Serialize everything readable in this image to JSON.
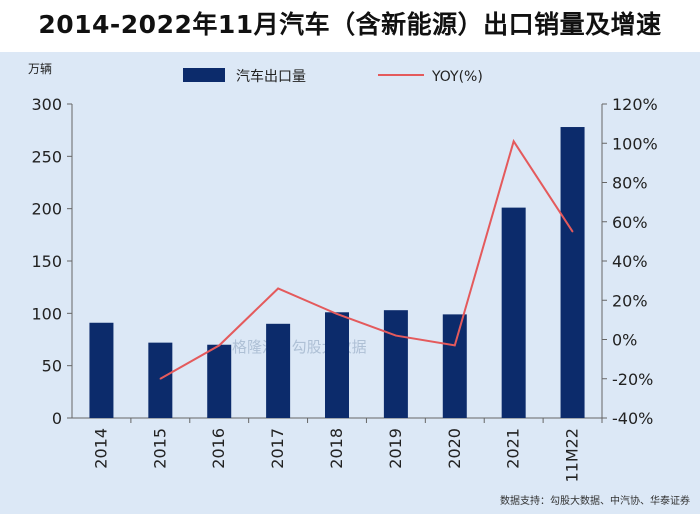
{
  "title": "2014-2022年11月汽车（含新能源）出口销量及增速",
  "chart_data": {
    "type": "bar",
    "categories": [
      "2014",
      "2015",
      "2016",
      "2017",
      "2018",
      "2019",
      "2020",
      "2021",
      "11M22"
    ],
    "series": [
      {
        "name": "汽车出口量",
        "type": "bar",
        "axis": "left",
        "values": [
          91,
          72,
          70,
          90,
          101,
          103,
          99,
          201,
          278
        ]
      },
      {
        "name": "YOY(%)",
        "type": "line",
        "axis": "right",
        "values": [
          null,
          -20,
          -3,
          26,
          13,
          2,
          -3,
          101,
          55
        ]
      }
    ],
    "ylabel_left": "万辆",
    "ylim_left": [
      0,
      300
    ],
    "yticks_left": [
      "0",
      "50",
      "100",
      "150",
      "200",
      "250",
      "300"
    ],
    "ylim_right": [
      -40,
      120
    ],
    "yticks_right": [
      "-40%",
      "-20%",
      "0%",
      "20%",
      "40%",
      "60%",
      "80%",
      "100%",
      "120%"
    ],
    "colors": {
      "bar": "#0c2b6b",
      "line": "#e45a5c",
      "panel": "#dce8f6"
    },
    "legend_position": "top",
    "grid": false,
    "source": "数据支持：勾股大数据、中汽协、华泰证券",
    "watermark": "格隆汇 | 勾股大数据"
  }
}
